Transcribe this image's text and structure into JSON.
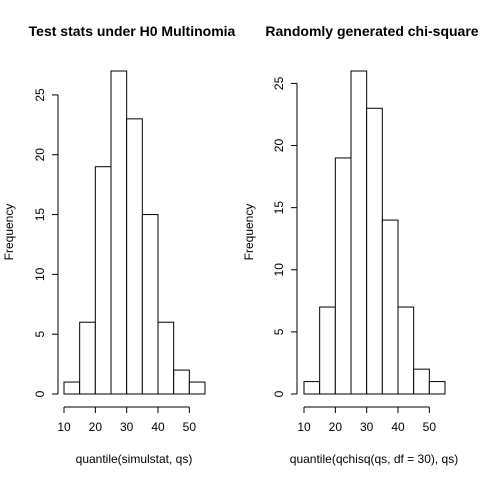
{
  "chart_data": [
    {
      "type": "bar",
      "title": "Test stats under H0 Multinomia",
      "xlabel": "quantile(simulstat, qs)",
      "ylabel": "Frequency",
      "bin_edges": [
        10,
        15,
        20,
        25,
        30,
        35,
        40,
        45,
        50,
        55
      ],
      "values": [
        1,
        6,
        19,
        27,
        23,
        15,
        6,
        2,
        1
      ],
      "xticks": [
        10,
        20,
        30,
        40,
        50
      ],
      "yticks": [
        0,
        5,
        10,
        15,
        20,
        25
      ],
      "xlim": [
        10,
        55
      ],
      "ylim": [
        0,
        27
      ]
    },
    {
      "type": "bar",
      "title": "Randomly generated chi-square",
      "xlabel": "quantile(qchisq(qs, df = 30), qs)",
      "ylabel": "Frequency",
      "bin_edges": [
        10,
        15,
        20,
        25,
        30,
        35,
        40,
        45,
        50,
        55
      ],
      "values": [
        1,
        7,
        19,
        26,
        23,
        14,
        7,
        2,
        1
      ],
      "xticks": [
        10,
        20,
        30,
        40,
        50
      ],
      "yticks": [
        0,
        5,
        10,
        15,
        20,
        25
      ],
      "xlim": [
        10,
        55
      ],
      "ylim": [
        0,
        26
      ]
    }
  ]
}
